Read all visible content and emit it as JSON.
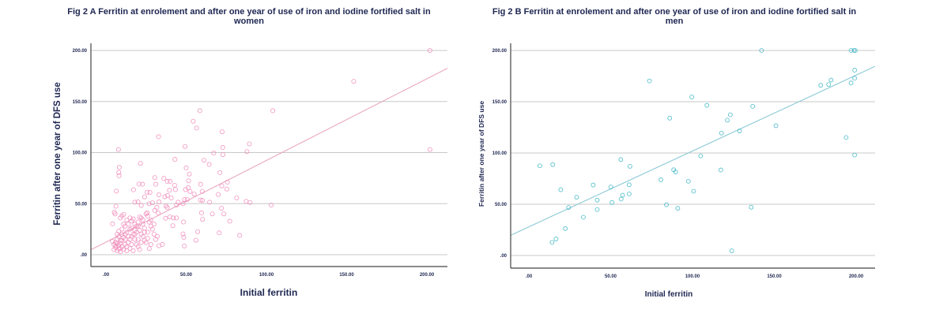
{
  "chart_data": [
    {
      "type": "scatter",
      "title_line1": "Fig 2 A Ferritin at enrolement and after one year of use of iron and iodine fortified salt in",
      "title_line2": "women",
      "xlabel": "Initial ferritin",
      "ylabel": "Ferritin after one year of DFS use",
      "xlim": [
        -11,
        213
      ],
      "ylim": [
        -12,
        210
      ],
      "xticks": [
        ".00",
        "50.00",
        "100.00",
        "150.00",
        "200.00"
      ],
      "xtick_values": [
        0,
        50,
        100,
        150,
        200
      ],
      "yticks": [
        ".00",
        "50.00",
        "100.00",
        "150.00",
        "200.00"
      ],
      "ytick_values": [
        0,
        50,
        100,
        150,
        200
      ],
      "grid": "horizontal",
      "marker_color": "#f08cba",
      "fit_line_color": "#eaa8c0",
      "fit_line": {
        "intercept": 12.3,
        "slope": 0.8
      },
      "points": [
        [
          201.9,
          200
        ],
        [
          154.4,
          169.8
        ],
        [
          104,
          141
        ],
        [
          201.9,
          103
        ],
        [
          103,
          48.6
        ],
        [
          58.5,
          141
        ],
        [
          54.4,
          130.7
        ],
        [
          56.5,
          124
        ],
        [
          32.8,
          115.5
        ],
        [
          72.4,
          120.4
        ],
        [
          49.3,
          106
        ],
        [
          72.8,
          105
        ],
        [
          89.4,
          108.5
        ],
        [
          87.9,
          101
        ],
        [
          67.2,
          99.5
        ],
        [
          72.9,
          98
        ],
        [
          7.8,
          103
        ],
        [
          43,
          93.3
        ],
        [
          21.5,
          89.4
        ],
        [
          61.1,
          92.5
        ],
        [
          64.3,
          88.4
        ],
        [
          8.3,
          85.5
        ],
        [
          8,
          80.6
        ],
        [
          8.2,
          77.3
        ],
        [
          50,
          85
        ],
        [
          52,
          79
        ],
        [
          71,
          80.4
        ],
        [
          30.4,
          75.5
        ],
        [
          36.1,
          74.7
        ],
        [
          38.2,
          71.8
        ],
        [
          40,
          71.8
        ],
        [
          51.5,
          72.4
        ],
        [
          59,
          69
        ],
        [
          75.7,
          71
        ],
        [
          20.6,
          69.2
        ],
        [
          22.8,
          69
        ],
        [
          31.1,
          69
        ],
        [
          42.8,
          68
        ],
        [
          72.2,
          67.4
        ],
        [
          75.3,
          64.3
        ],
        [
          6.5,
          62.3
        ],
        [
          17.2,
          63.6
        ],
        [
          25.7,
          61.2
        ],
        [
          27.4,
          61
        ],
        [
          43.3,
          63.8
        ],
        [
          39.6,
          63
        ],
        [
          49.6,
          63.8
        ],
        [
          51.3,
          65.6
        ],
        [
          52.4,
          62
        ],
        [
          60,
          62
        ],
        [
          33,
          58.7
        ],
        [
          36.7,
          56.8
        ],
        [
          38.3,
          57.9
        ],
        [
          40.7,
          55.6
        ],
        [
          24.1,
          56.6
        ],
        [
          55,
          59.4
        ],
        [
          70,
          59
        ],
        [
          50.6,
          54
        ],
        [
          49,
          54
        ],
        [
          58.9,
          53.5
        ],
        [
          60.2,
          53.2
        ],
        [
          81.5,
          55.6
        ],
        [
          87.4,
          52.2
        ],
        [
          89.8,
          51.2
        ],
        [
          64.6,
          51.4
        ],
        [
          45,
          51.4
        ],
        [
          44,
          48.6
        ],
        [
          48.1,
          50
        ],
        [
          33.1,
          51.7
        ],
        [
          18,
          51.4
        ],
        [
          20,
          51.7
        ],
        [
          22,
          48.3
        ],
        [
          26.9,
          49.9
        ],
        [
          29,
          50.9
        ],
        [
          6.3,
          47.5
        ],
        [
          5.2,
          41.6
        ],
        [
          5.7,
          40
        ],
        [
          11.1,
          39.5
        ],
        [
          37.4,
          47.8
        ],
        [
          38.2,
          46.3
        ],
        [
          31.7,
          46.3
        ],
        [
          30.4,
          43.4
        ],
        [
          32.6,
          40.8
        ],
        [
          25.7,
          41
        ],
        [
          37.2,
          35.7
        ],
        [
          39.8,
          37
        ],
        [
          42,
          36
        ],
        [
          43.9,
          36
        ],
        [
          59.6,
          41
        ],
        [
          60.2,
          34.6
        ],
        [
          66.3,
          40
        ],
        [
          72,
          45.5
        ],
        [
          73.5,
          40
        ],
        [
          77.2,
          32.8
        ],
        [
          48.3,
          32
        ],
        [
          41.7,
          28.4
        ],
        [
          83.3,
          18.9
        ],
        [
          70.6,
          21.4
        ],
        [
          57.2,
          22.5
        ],
        [
          48,
          20.4
        ],
        [
          48.5,
          17
        ],
        [
          56.1,
          14.2
        ],
        [
          48.9,
          8.5
        ],
        [
          33,
          8.8
        ],
        [
          35.2,
          10.1
        ],
        [
          4.1,
          30.2
        ],
        [
          5,
          5
        ],
        [
          6,
          7
        ],
        [
          7,
          4
        ],
        [
          8,
          9
        ],
        [
          9,
          6
        ],
        [
          10,
          8
        ],
        [
          11,
          5
        ],
        [
          6,
          12
        ],
        [
          7,
          15
        ],
        [
          8,
          18
        ],
        [
          9,
          11
        ],
        [
          10,
          14
        ],
        [
          11,
          17
        ],
        [
          12,
          20
        ],
        [
          13,
          22
        ],
        [
          7,
          20
        ],
        [
          8,
          23
        ],
        [
          9,
          3
        ],
        [
          10,
          25
        ],
        [
          12,
          10
        ],
        [
          13,
          8
        ],
        [
          14,
          12
        ],
        [
          15,
          15
        ],
        [
          16,
          18
        ],
        [
          12,
          28
        ],
        [
          14,
          30
        ],
        [
          15,
          25
        ],
        [
          16,
          33
        ],
        [
          17,
          35
        ],
        [
          18,
          30
        ],
        [
          19,
          28
        ],
        [
          20,
          32
        ],
        [
          21,
          24
        ],
        [
          22,
          20
        ],
        [
          23,
          18
        ],
        [
          24,
          14
        ],
        [
          25,
          12
        ],
        [
          18,
          15
        ],
        [
          19,
          10
        ],
        [
          20,
          8
        ],
        [
          21,
          5
        ],
        [
          17,
          4
        ],
        [
          22,
          36
        ],
        [
          23,
          30
        ],
        [
          24,
          26
        ],
        [
          26,
          22
        ],
        [
          27,
          32
        ],
        [
          28,
          28
        ],
        [
          29,
          25
        ],
        [
          30,
          20
        ],
        [
          31,
          15
        ],
        [
          32,
          18
        ],
        [
          25,
          40
        ],
        [
          26,
          38
        ],
        [
          28,
          34
        ],
        [
          15,
          36
        ],
        [
          13,
          34
        ],
        [
          11,
          30
        ],
        [
          10,
          20
        ],
        [
          6,
          9
        ],
        [
          7,
          11
        ],
        [
          8,
          6
        ],
        [
          9,
          14
        ],
        [
          5,
          10
        ],
        [
          4,
          13
        ],
        [
          12,
          15
        ],
        [
          14,
          18
        ],
        [
          16,
          10
        ],
        [
          18,
          20
        ],
        [
          20,
          15
        ],
        [
          22,
          12
        ],
        [
          16,
          26
        ],
        [
          18,
          24
        ],
        [
          20,
          28
        ],
        [
          21,
          37
        ],
        [
          23,
          34
        ],
        [
          24,
          22
        ],
        [
          26,
          16
        ],
        [
          28,
          10
        ],
        [
          30,
          30
        ],
        [
          9,
          36
        ],
        [
          10,
          38
        ],
        [
          17,
          20
        ],
        [
          19,
          22
        ],
        [
          15,
          6
        ],
        [
          13,
          4
        ],
        [
          27,
          6
        ]
      ]
    },
    {
      "type": "scatter",
      "title_line1": "Fig 2 B Ferritin at enrolement and after one year of use of iron and iodine fortified salt in",
      "title_line2": "men",
      "xlabel": "Initial ferritin",
      "ylabel": "Ferritin after one year of DFS use",
      "xlim": [
        -11,
        211
      ],
      "ylim": [
        -12,
        210
      ],
      "xticks": [
        ".00",
        "50.00",
        "100.00",
        "150.00",
        "200.00"
      ],
      "xtick_values": [
        0,
        50,
        100,
        150,
        200
      ],
      "yticks": [
        ".00",
        "50.00",
        "100.00",
        "150.00",
        "200.00"
      ],
      "ytick_values": [
        0,
        50,
        100,
        150,
        200
      ],
      "grid": "horizontal",
      "marker_color": "#3cb6c6",
      "fit_line_color": "#8ccad6",
      "fit_line": {
        "intercept": 27.9,
        "slope": 0.74
      },
      "points": [
        [
          6.7,
          87.5
        ],
        [
          14.6,
          88.7
        ],
        [
          19.5,
          64.2
        ],
        [
          24.3,
          46.8
        ],
        [
          29.2,
          56.8
        ],
        [
          33.3,
          37.3
        ],
        [
          22.3,
          26.3
        ],
        [
          14.2,
          12.8
        ],
        [
          16.6,
          16.1
        ],
        [
          39.3,
          68.8
        ],
        [
          41.8,
          54
        ],
        [
          41.8,
          44.8
        ],
        [
          50.1,
          66.8
        ],
        [
          50.8,
          51.7
        ],
        [
          56.2,
          93.6
        ],
        [
          57.3,
          58.8
        ],
        [
          56.4,
          55
        ],
        [
          61.8,
          87
        ],
        [
          61.3,
          69
        ],
        [
          61.3,
          60.1
        ],
        [
          73.7,
          170.3
        ],
        [
          80.7,
          73.9
        ],
        [
          84.1,
          49.6
        ],
        [
          86.1,
          134
        ],
        [
          88.5,
          83.6
        ],
        [
          89.7,
          81.6
        ],
        [
          91,
          46
        ],
        [
          97.5,
          72.4
        ],
        [
          99.6,
          154.7
        ],
        [
          100.7,
          62.7
        ],
        [
          105,
          97.2
        ],
        [
          108.8,
          146.5
        ],
        [
          117.3,
          83.4
        ],
        [
          117.7,
          119.4
        ],
        [
          121.3,
          132
        ],
        [
          123.1,
          137.3
        ],
        [
          124,
          4.6
        ],
        [
          128.8,
          121.5
        ],
        [
          135.9,
          47.1
        ],
        [
          136.8,
          145.5
        ],
        [
          142.2,
          200
        ],
        [
          151,
          126.6
        ],
        [
          178.4,
          166
        ],
        [
          183.2,
          166.8
        ],
        [
          184.7,
          171.1
        ],
        [
          193.9,
          115.1
        ],
        [
          196.9,
          168.3
        ],
        [
          196.9,
          200
        ],
        [
          198.7,
          200
        ],
        [
          199.5,
          200
        ],
        [
          199.1,
          180.8
        ],
        [
          199.1,
          172.9
        ],
        [
          199.1,
          98
        ]
      ]
    }
  ]
}
